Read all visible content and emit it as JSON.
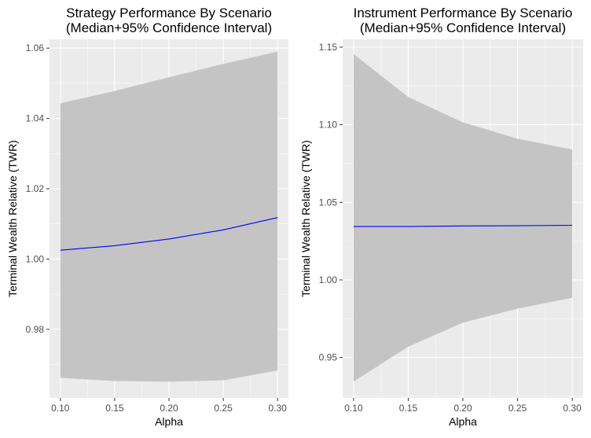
{
  "chart_data": [
    {
      "type": "area",
      "title_lines": [
        "Strategy Performance By Scenario",
        "(Median+95% Confidence Interval)"
      ],
      "xlabel": "Alpha",
      "ylabel": "Terminal Wealth Relative (TWR)",
      "xlim": [
        0.09,
        0.31
      ],
      "ylim": [
        0.9605,
        1.0625
      ],
      "x_ticks": [
        0.1,
        0.15,
        0.2,
        0.25,
        0.3
      ],
      "x_tick_labels": [
        "0.10",
        "0.15",
        "0.20",
        "0.25",
        "0.30"
      ],
      "y_ticks": [
        0.98,
        1.0,
        1.02,
        1.04,
        1.06
      ],
      "y_tick_labels": [
        "0.98",
        "1.00",
        "1.02",
        "1.04",
        "1.06"
      ],
      "grid": true,
      "x": [
        0.1,
        0.15,
        0.2,
        0.25,
        0.3
      ],
      "series": [
        {
          "role": "upper_bound",
          "values": [
            1.0443,
            1.0478,
            1.0517,
            1.0555,
            1.059
          ]
        },
        {
          "role": "median",
          "values": [
            1.0025,
            1.0038,
            1.0057,
            1.0083,
            1.0118
          ]
        },
        {
          "role": "lower_bound",
          "values": [
            0.9662,
            0.9653,
            0.9651,
            0.9655,
            0.9683
          ]
        }
      ],
      "colors": {
        "band": "#c4c4c4",
        "line": "#0000ff",
        "panel": "#ebebeb",
        "grid": "#ffffff"
      }
    },
    {
      "type": "area",
      "title_lines": [
        "Instrument Performance By Scenario",
        "(Median+95% Confidence Interval)"
      ],
      "xlabel": "Alpha",
      "ylabel": "Terminal Wealth Relative (TWR)",
      "xlim": [
        0.09,
        0.31
      ],
      "ylim": [
        0.924,
        1.155
      ],
      "x_ticks": [
        0.1,
        0.15,
        0.2,
        0.25,
        0.3
      ],
      "x_tick_labels": [
        "0.10",
        "0.15",
        "0.20",
        "0.25",
        "0.30"
      ],
      "y_ticks": [
        0.95,
        1.0,
        1.05,
        1.1,
        1.15
      ],
      "y_tick_labels": [
        "0.95",
        "1.00",
        "1.05",
        "1.10",
        "1.15"
      ],
      "grid": true,
      "x": [
        0.1,
        0.15,
        0.2,
        0.25,
        0.3
      ],
      "series": [
        {
          "role": "upper_bound",
          "values": [
            1.1455,
            1.1178,
            1.1015,
            1.091,
            1.084
          ]
        },
        {
          "role": "median",
          "values": [
            1.0344,
            1.0344,
            1.0348,
            1.0349,
            1.0352
          ]
        },
        {
          "role": "lower_bound",
          "values": [
            0.9345,
            0.957,
            0.9725,
            0.9815,
            0.9885
          ]
        }
      ],
      "colors": {
        "band": "#c4c4c4",
        "line": "#0000ff",
        "panel": "#ebebeb",
        "grid": "#ffffff"
      }
    }
  ]
}
